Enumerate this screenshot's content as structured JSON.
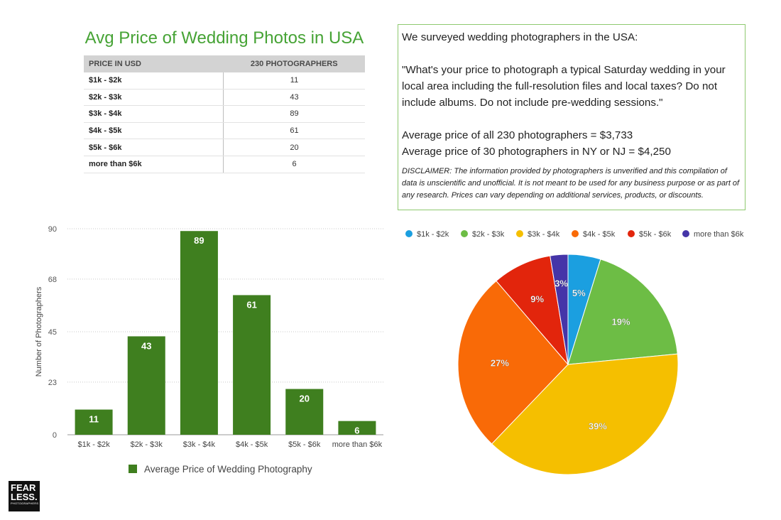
{
  "title": "Avg Price of Wedding Photos in USA",
  "table": {
    "headers": [
      "PRICE IN USD",
      "230 PHOTOGRAPHERS"
    ],
    "rows": [
      [
        "$1k - $2k",
        "11"
      ],
      [
        "$2k - $3k",
        "43"
      ],
      [
        "$3k - $4k",
        "89"
      ],
      [
        "$4k - $5k",
        "61"
      ],
      [
        "$5k - $6k",
        "20"
      ],
      [
        "more than $6k",
        "6"
      ]
    ]
  },
  "survey": {
    "intro": "We surveyed wedding photographers in the USA:",
    "question": "\"What's your price to photograph a typical Saturday wedding in your local area including the full-resolution files and local taxes? Do not include albums. Do not include pre-wedding sessions.\"",
    "avg_all": "Average price of all 230 photographers = $3,733",
    "avg_nynj": "Average price of 30 photographers in NY or NJ = $4,250",
    "disclaimer": "DISCLAIMER: The information provided by photographers is unverified and this compilation of data is unscientific and unofficial. It is not meant to be used for any business purpose or as part of any research. Prices can vary depending on additional services, products, or discounts."
  },
  "logo": {
    "line1": "FEAR",
    "line2": "LESS.",
    "line3": "PHOTOGRAPHERS"
  },
  "chart_data": [
    {
      "type": "bar",
      "categories": [
        "$1k - $2k",
        "$2k - $3k",
        "$3k - $4k",
        "$4k - $5k",
        "$5k - $6k",
        "more than $6k"
      ],
      "values": [
        11,
        43,
        89,
        61,
        20,
        6
      ],
      "ylabel": "Number of Photographers",
      "ylim": [
        0,
        90
      ],
      "yticks": [
        0,
        23,
        45,
        68,
        90
      ],
      "legend": "Average Price of Wedding Photography",
      "color": "#3f7f1f"
    },
    {
      "type": "pie",
      "labels": [
        "$1k - $2k",
        "$2k - $3k",
        "$3k - $4k",
        "$4k - $5k",
        "$5k - $6k",
        "more than $6k"
      ],
      "values": [
        11,
        43,
        89,
        61,
        20,
        6
      ],
      "percent_labels": [
        "5%",
        "19%",
        "39%",
        "27%",
        "9%",
        "3%"
      ],
      "colors": [
        "#1b9fe0",
        "#6dbd45",
        "#f5bf00",
        "#f96a07",
        "#e2250c",
        "#4535a8"
      ]
    }
  ]
}
